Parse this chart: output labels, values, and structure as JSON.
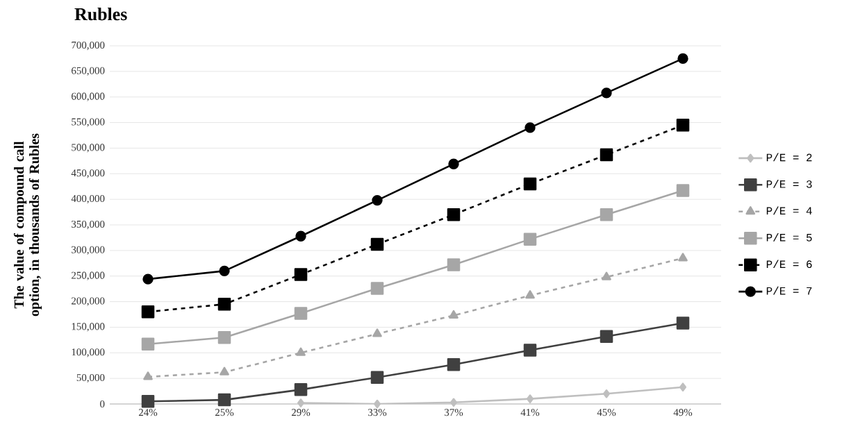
{
  "chart_data": {
    "type": "line",
    "title": "Rubles",
    "ylabel": "The value of compound call option, in thousands of Rubles",
    "categories": [
      "24%",
      "25%",
      "29%",
      "33%",
      "37%",
      "41%",
      "45%",
      "49%"
    ],
    "series": [
      {
        "name": "P/E = 2",
        "color": "#bfbfbf",
        "marker": "diamond",
        "line_style": "solid",
        "values": [
          null,
          null,
          2000,
          0,
          3000,
          10000,
          20000,
          33000
        ]
      },
      {
        "name": "P/E = 3",
        "color": "#404040",
        "marker": "square",
        "line_style": "solid",
        "values": [
          5000,
          8000,
          28000,
          52000,
          77000,
          105000,
          132000,
          158000
        ]
      },
      {
        "name": "P/E = 4",
        "color": "#a6a6a6",
        "marker": "triangle",
        "line_style": "dashed",
        "values": [
          53000,
          62000,
          100000,
          137000,
          173000,
          212000,
          248000,
          285000
        ]
      },
      {
        "name": "P/E = 5",
        "color": "#a6a6a6",
        "marker": "square",
        "line_style": "solid",
        "values": [
          117000,
          130000,
          177000,
          226000,
          272000,
          322000,
          370000,
          417000
        ]
      },
      {
        "name": "P/E = 6",
        "color": "#000000",
        "marker": "square",
        "line_style": "dashed",
        "values": [
          180000,
          195000,
          253000,
          312000,
          370000,
          430000,
          487000,
          545000
        ]
      },
      {
        "name": "P/E = 7",
        "color": "#000000",
        "marker": "circle",
        "line_style": "solid",
        "values": [
          244000,
          260000,
          328000,
          398000,
          469000,
          540000,
          608000,
          675000
        ]
      }
    ],
    "ylim": [
      0,
      700000
    ],
    "yticks": [
      0,
      {
        "value": 50000,
        "label": "50,000"
      },
      {
        "value": 100000,
        "label": "100,000"
      },
      {
        "value": 150000,
        "label": "150,000"
      },
      {
        "value": 200000,
        "label": "200,000"
      },
      {
        "value": 250000,
        "label": "250,000"
      },
      {
        "value": 300000,
        "label": "300,000"
      },
      {
        "value": 350000,
        "label": "350,000"
      },
      {
        "value": 400000,
        "label": "400,000"
      },
      {
        "value": 450000,
        "label": "450,000"
      },
      {
        "value": 500000,
        "label": "500,000"
      },
      {
        "value": 550000,
        "label": "550,000"
      },
      {
        "value": 600000,
        "label": "600,000"
      },
      {
        "value": 650000,
        "label": "650,000"
      },
      {
        "value": 700000,
        "label": "700,000"
      }
    ],
    "grid": "y",
    "legend": "right"
  }
}
